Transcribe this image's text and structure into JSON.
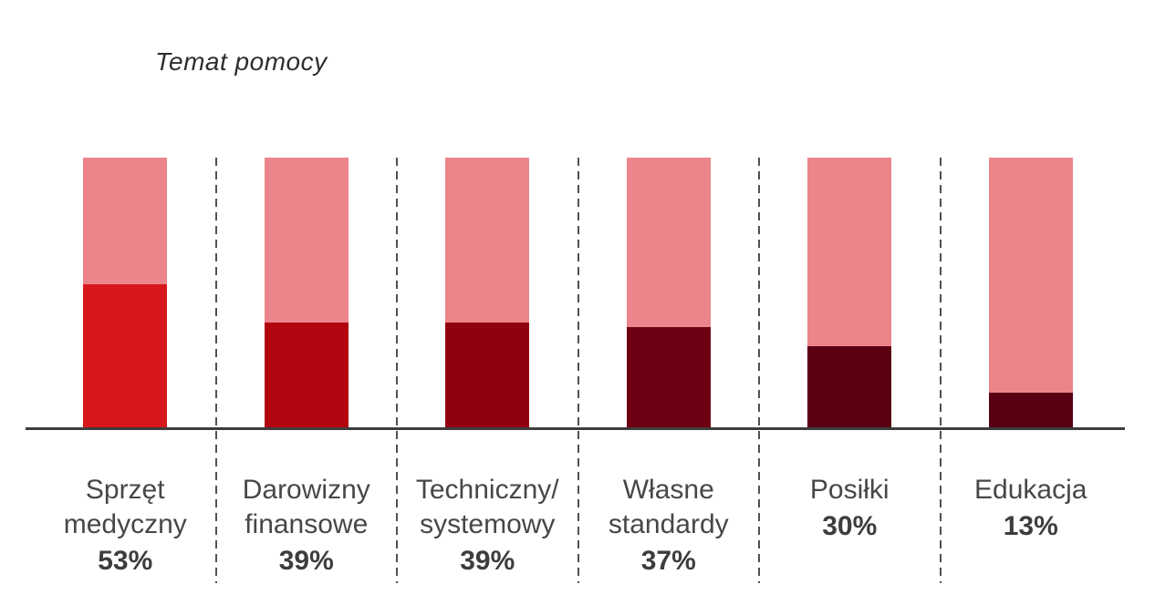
{
  "chart_data": {
    "type": "bar",
    "subtype": "percentage-fill-columns",
    "title": "Temat pomocy",
    "categories": [
      "Sprzęt medyczny",
      "Darowizny finansowe",
      "Techniczny/systemowy",
      "Własne standardy",
      "Posiłki",
      "Edukacja"
    ],
    "category_lines": [
      [
        "Sprzęt",
        "medyczny"
      ],
      [
        "Darowizny",
        "finansowe"
      ],
      [
        "Techniczny/",
        "systemowy"
      ],
      [
        "Własne",
        "standardy"
      ],
      [
        "Posiłki"
      ],
      [
        "Edukacja"
      ]
    ],
    "values": [
      53,
      39,
      39,
      37,
      30,
      13
    ],
    "value_labels": [
      "53%",
      "39%",
      "39%",
      "37%",
      "30%",
      "13%"
    ],
    "ylim": [
      0,
      100
    ],
    "background_bar_value": 100,
    "legend": "none",
    "grid": "dashed-vertical-separators",
    "colors": {
      "background_bar": "#ec858b",
      "fill_by_bar": [
        "#d8171d",
        "#b2050f",
        "#91000f",
        "#6f0013",
        "#5b0013",
        "#560012"
      ],
      "axis_line": "#3d3d3d",
      "separator": "#515151",
      "category_label": "#474747",
      "value_label": "#3d3d3d",
      "title": "#2e2e2e"
    }
  }
}
